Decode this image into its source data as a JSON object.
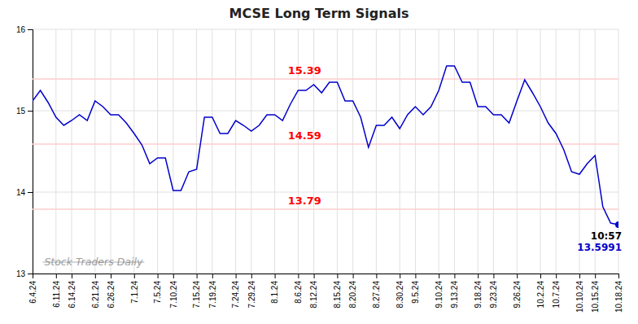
{
  "chart_data": {
    "type": "line",
    "title": "MCSE Long Term Signals",
    "categories": [
      "6.4.24",
      null,
      null,
      "6.11.24",
      null,
      "6.14.24",
      null,
      null,
      "6.21.24",
      null,
      "6.26.24",
      null,
      null,
      "7.1.24",
      null,
      null,
      "7.5.24",
      null,
      "7.10.24",
      null,
      null,
      "7.15.24",
      null,
      "7.19.24",
      null,
      null,
      "7.24.24",
      null,
      "7.29.24",
      null,
      null,
      "8.1.24",
      null,
      null,
      "8.6.24",
      null,
      "8.12.24",
      null,
      null,
      "8.15.24",
      null,
      "8.20.24",
      null,
      null,
      "8.27.24",
      null,
      null,
      "8.30.24",
      null,
      "9.5.24",
      null,
      null,
      "9.10.24",
      null,
      "9.13.24",
      null,
      null,
      "9.18.24",
      null,
      "9.23.24",
      null,
      null,
      "9.26.24",
      null,
      null,
      "10.2.24",
      null,
      "10.7.24",
      null,
      null,
      "10.10.24",
      null,
      "10.15.24",
      null,
      null,
      "10.18.24"
    ],
    "values": [
      15.12,
      15.25,
      15.1,
      14.92,
      14.82,
      14.88,
      14.95,
      14.88,
      15.12,
      15.05,
      14.95,
      14.95,
      14.85,
      14.72,
      14.58,
      14.35,
      14.42,
      14.42,
      14.02,
      14.02,
      14.25,
      14.28,
      14.92,
      14.92,
      14.72,
      14.72,
      14.88,
      14.82,
      14.75,
      14.82,
      14.95,
      14.95,
      14.88,
      15.08,
      15.25,
      15.25,
      15.32,
      15.22,
      15.35,
      15.35,
      15.12,
      15.12,
      14.92,
      14.55,
      14.82,
      14.82,
      14.92,
      14.78,
      14.95,
      15.05,
      14.95,
      15.05,
      15.25,
      15.55,
      15.55,
      15.35,
      15.35,
      15.05,
      15.05,
      14.95,
      14.95,
      14.85,
      15.12,
      15.38,
      15.22,
      15.05,
      14.85,
      14.72,
      14.52,
      14.25,
      14.22,
      14.35,
      14.45,
      13.82,
      13.62,
      13.6
    ],
    "color": "#0000cc",
    "ylim": [
      13.0,
      16.0
    ],
    "yticks": [
      13,
      14,
      15,
      16
    ],
    "grid": true,
    "hlines": [
      {
        "value": 15.39,
        "color": "#ffcccc"
      },
      {
        "value": 14.59,
        "color": "#ffcccc"
      },
      {
        "value": 13.79,
        "color": "#ffcccc"
      }
    ],
    "annotations": [
      {
        "text": "15.39",
        "y": 15.39,
        "color": "red"
      },
      {
        "text": "14.59",
        "y": 14.59,
        "color": "red"
      },
      {
        "text": "13.79",
        "y": 13.79,
        "color": "red"
      }
    ],
    "end_label": {
      "time": "10:57",
      "value": "13.5991",
      "color": "#0000cc"
    },
    "watermark": "Stock Traders Daily"
  }
}
